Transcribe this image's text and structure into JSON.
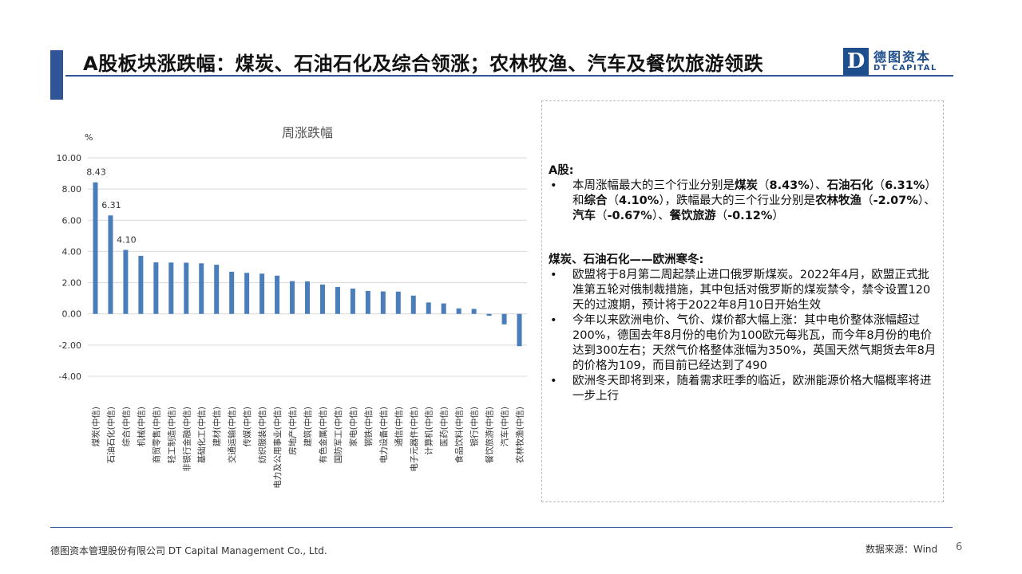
{
  "header": {
    "title": "A股板块涨跌幅：煤炭、石油石化及综合领涨；农林牧渔、汽车及餐饮旅游领跌",
    "logo_mark": "D",
    "logo_cn": "德图资本",
    "logo_en": "DT CAPITAL"
  },
  "chart_data": {
    "type": "bar",
    "title": "周涨跌幅",
    "ylabel": "%",
    "ylim": [
      -4,
      10
    ],
    "yticks": [
      10,
      8,
      6,
      4,
      2,
      0,
      -2,
      -4
    ],
    "ytick_labels": [
      "10.00",
      "8.00",
      "6.00",
      "4.00",
      "2.00",
      "0.00",
      "-2.00",
      "-4.00"
    ],
    "grid": true,
    "bar_color": "#4a7ebb",
    "categories": [
      "煤炭(中信)",
      "石油石化(中信)",
      "综合(中信)",
      "机械(中信)",
      "商贸零售(中信)",
      "轻工制造(中信)",
      "非银行金融(中信)",
      "基础化工(中信)",
      "建材(中信)",
      "交通运输(中信)",
      "传媒(中信)",
      "纺织服装(中信)",
      "电力及公用事业(中信)",
      "房地产(中信)",
      "建筑(中信)",
      "有色金属(中信)",
      "国防军工(中信)",
      "家电(中信)",
      "钢铁(中信)",
      "电力设备(中信)",
      "通信(中信)",
      "电子元器件(中信)",
      "计算机(中信)",
      "医药(中信)",
      "食品饮料(中信)",
      "银行(中信)",
      "餐饮旅游(中信)",
      "汽车(中信)",
      "农林牧渔(中信)"
    ],
    "values": [
      8.43,
      6.31,
      4.1,
      3.72,
      3.3,
      3.29,
      3.28,
      3.24,
      3.15,
      2.7,
      2.63,
      2.58,
      2.45,
      2.1,
      2.08,
      1.88,
      1.72,
      1.62,
      1.47,
      1.44,
      1.43,
      1.17,
      0.73,
      0.67,
      0.35,
      0.32,
      -0.12,
      -0.67,
      -2.07
    ],
    "data_labels": [
      {
        "index": 0,
        "text": "8.43"
      },
      {
        "index": 1,
        "text": "6.31"
      },
      {
        "index": 2,
        "text": "4.10"
      }
    ]
  },
  "panel": {
    "sec1_head": "A股:",
    "sec1_items": [
      [
        {
          "t": "本周涨幅最大的三个行业分别是",
          "b": false
        },
        {
          "t": "煤炭",
          "b": true
        },
        {
          "t": "（",
          "b": false
        },
        {
          "t": "8.43%",
          "b": true
        },
        {
          "t": "）、",
          "b": false
        },
        {
          "t": "石油石化",
          "b": true
        },
        {
          "t": "（",
          "b": false
        },
        {
          "t": "6.31%",
          "b": true
        },
        {
          "t": "）和",
          "b": false
        },
        {
          "t": "综合",
          "b": true
        },
        {
          "t": "（",
          "b": false
        },
        {
          "t": "4.10%",
          "b": true
        },
        {
          "t": "），跌幅最大的三个行业分别是",
          "b": false
        },
        {
          "t": "农林牧渔",
          "b": true
        },
        {
          "t": "（",
          "b": false
        },
        {
          "t": "-2.07%",
          "b": true
        },
        {
          "t": "）、",
          "b": false
        },
        {
          "t": "汽车",
          "b": true
        },
        {
          "t": "（",
          "b": false
        },
        {
          "t": "-0.67%",
          "b": true
        },
        {
          "t": "）、",
          "b": false
        },
        {
          "t": "餐饮旅游",
          "b": true
        },
        {
          "t": "（",
          "b": false
        },
        {
          "t": "-0.12%",
          "b": true
        },
        {
          "t": "）",
          "b": false
        }
      ]
    ],
    "sec2_head": "煤炭、石油石化——欧洲寒冬:",
    "sec2_items": [
      "欧盟将于8月第二周起禁止进口俄罗斯煤炭。2022年4月，欧盟正式批准第五轮对俄制裁措施，其中包括对俄罗斯的煤炭禁令，禁令设置120天的过渡期，预计将于2022年8月10日开始生效",
      "今年以来欧洲电价、气价、煤价都大幅上涨：其中电价整体涨幅超过200%，德国去年8月份的电价为100欧元每兆瓦，而今年8月份的电价达到300左右；天然气价格整体涨幅为350%，英国天然气期货去年8月的价格为109，而目前已经达到了490",
      "欧洲冬天即将到来，随着需求旺季的临近，欧洲能源价格大幅概率将进一步上行"
    ]
  },
  "footer": {
    "company": "德图资本管理股份有限公司 DT Capital Management Co., Ltd.",
    "source": "数据来源：Wind",
    "page": "6"
  }
}
